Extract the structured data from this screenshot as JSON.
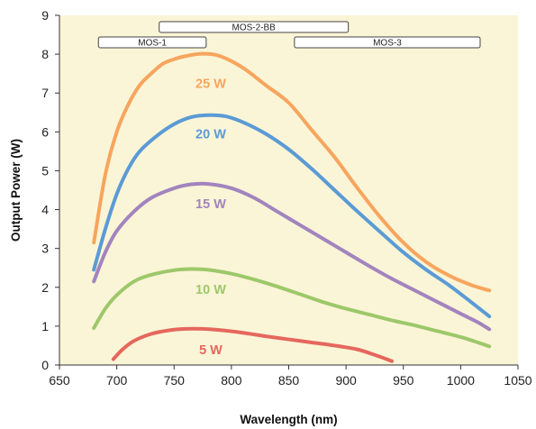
{
  "chart_data": {
    "type": "line",
    "title": "",
    "xlabel": "Wavelength (nm)",
    "ylabel": "Output Power (W)",
    "xlim": [
      650,
      1050
    ],
    "ylim": [
      0,
      9
    ],
    "x_ticks": [
      650,
      700,
      750,
      800,
      850,
      900,
      950,
      1000,
      1050
    ],
    "y_ticks": [
      0,
      1,
      2,
      3,
      4,
      5,
      6,
      7,
      8,
      9
    ],
    "x_tick_labels": [
      "650",
      "700",
      "750",
      "800",
      "850",
      "900",
      "950",
      "1000",
      "1050"
    ],
    "y_tick_labels": [
      "0",
      "1",
      "2",
      "3",
      "4",
      "5",
      "6",
      "7",
      "8",
      "9"
    ],
    "grid": false,
    "plot_background": "#fbf5d7",
    "bands": [
      {
        "label": "MOS-2-BB",
        "x_start": 737,
        "x_end": 902,
        "row": 1
      },
      {
        "label": "MOS-1",
        "x_start": 684,
        "x_end": 778,
        "row": 2
      },
      {
        "label": "MOS-3",
        "x_start": 855,
        "x_end": 1017,
        "row": 2
      }
    ],
    "series": [
      {
        "name": "25 W",
        "color": "#f7a55e",
        "label_at": [
          782,
          7.25
        ],
        "points": [
          [
            680,
            3.15
          ],
          [
            690,
            4.9
          ],
          [
            700,
            6.0
          ],
          [
            710,
            6.7
          ],
          [
            720,
            7.2
          ],
          [
            730,
            7.5
          ],
          [
            740,
            7.75
          ],
          [
            750,
            7.87
          ],
          [
            760,
            7.95
          ],
          [
            775,
            8.01
          ],
          [
            790,
            7.95
          ],
          [
            810,
            7.65
          ],
          [
            830,
            7.2
          ],
          [
            850,
            6.75
          ],
          [
            870,
            6.05
          ],
          [
            890,
            5.35
          ],
          [
            910,
            4.55
          ],
          [
            930,
            3.8
          ],
          [
            950,
            3.15
          ],
          [
            970,
            2.65
          ],
          [
            990,
            2.3
          ],
          [
            1010,
            2.05
          ],
          [
            1025,
            1.92
          ]
        ]
      },
      {
        "name": "20 W",
        "color": "#5b9bd5",
        "label_at": [
          782,
          5.95
        ],
        "points": [
          [
            680,
            2.45
          ],
          [
            690,
            3.5
          ],
          [
            700,
            4.4
          ],
          [
            710,
            5.05
          ],
          [
            720,
            5.5
          ],
          [
            735,
            5.9
          ],
          [
            750,
            6.2
          ],
          [
            765,
            6.38
          ],
          [
            780,
            6.43
          ],
          [
            795,
            6.4
          ],
          [
            810,
            6.25
          ],
          [
            830,
            5.95
          ],
          [
            850,
            5.55
          ],
          [
            870,
            5.05
          ],
          [
            890,
            4.5
          ],
          [
            910,
            3.95
          ],
          [
            930,
            3.42
          ],
          [
            950,
            2.9
          ],
          [
            970,
            2.45
          ],
          [
            990,
            2.05
          ],
          [
            1010,
            1.6
          ],
          [
            1025,
            1.25
          ]
        ]
      },
      {
        "name": "15 W",
        "color": "#a284be",
        "label_at": [
          782,
          4.15
        ],
        "points": [
          [
            680,
            2.15
          ],
          [
            690,
            2.9
          ],
          [
            700,
            3.45
          ],
          [
            715,
            3.95
          ],
          [
            730,
            4.3
          ],
          [
            750,
            4.55
          ],
          [
            765,
            4.65
          ],
          [
            780,
            4.66
          ],
          [
            800,
            4.55
          ],
          [
            820,
            4.3
          ],
          [
            840,
            3.95
          ],
          [
            860,
            3.6
          ],
          [
            880,
            3.25
          ],
          [
            900,
            2.9
          ],
          [
            920,
            2.55
          ],
          [
            940,
            2.22
          ],
          [
            960,
            1.92
          ],
          [
            980,
            1.62
          ],
          [
            1000,
            1.32
          ],
          [
            1015,
            1.1
          ],
          [
            1025,
            0.92
          ]
        ]
      },
      {
        "name": "10 W",
        "color": "#9dc86a",
        "label_at": [
          782,
          1.95
        ],
        "points": [
          [
            680,
            0.95
          ],
          [
            690,
            1.45
          ],
          [
            700,
            1.8
          ],
          [
            715,
            2.15
          ],
          [
            730,
            2.32
          ],
          [
            750,
            2.44
          ],
          [
            765,
            2.47
          ],
          [
            780,
            2.45
          ],
          [
            800,
            2.35
          ],
          [
            820,
            2.2
          ],
          [
            840,
            2.02
          ],
          [
            860,
            1.82
          ],
          [
            880,
            1.62
          ],
          [
            900,
            1.45
          ],
          [
            920,
            1.3
          ],
          [
            940,
            1.15
          ],
          [
            960,
            1.02
          ],
          [
            980,
            0.87
          ],
          [
            1000,
            0.72
          ],
          [
            1015,
            0.58
          ],
          [
            1025,
            0.48
          ]
        ]
      },
      {
        "name": "5 W",
        "color": "#e5675d",
        "label_at": [
          782,
          0.4
        ],
        "points": [
          [
            697,
            0.15
          ],
          [
            705,
            0.4
          ],
          [
            715,
            0.62
          ],
          [
            730,
            0.8
          ],
          [
            745,
            0.89
          ],
          [
            760,
            0.93
          ],
          [
            775,
            0.93
          ],
          [
            790,
            0.9
          ],
          [
            810,
            0.83
          ],
          [
            830,
            0.74
          ],
          [
            850,
            0.66
          ],
          [
            870,
            0.58
          ],
          [
            890,
            0.5
          ],
          [
            910,
            0.4
          ],
          [
            925,
            0.26
          ],
          [
            940,
            0.1
          ]
        ]
      }
    ]
  }
}
